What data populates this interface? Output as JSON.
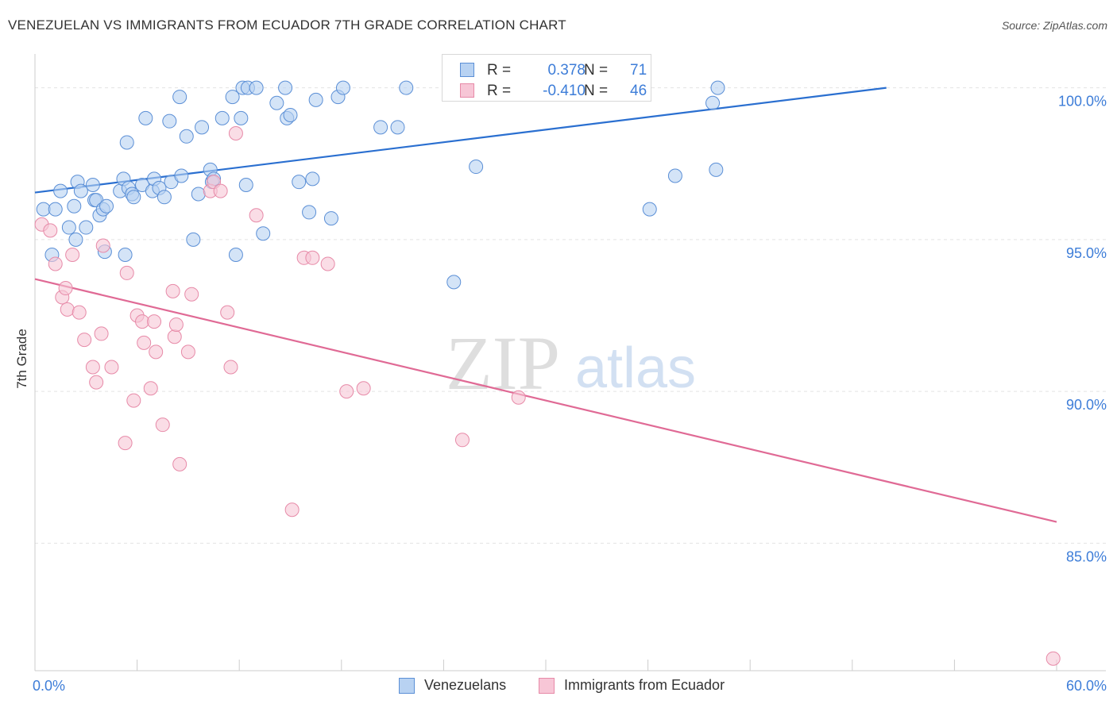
{
  "header": {
    "title": "VENEZUELAN VS IMMIGRANTS FROM ECUADOR 7TH GRADE CORRELATION CHART",
    "source": "Source: ZipAtlas.com"
  },
  "colors": {
    "blue_fill": "#b8d2f2",
    "blue_stroke": "#5b8fd6",
    "blue_line": "#2a6fd0",
    "pink_fill": "#f7c6d6",
    "pink_stroke": "#e78aa8",
    "pink_line": "#e06a95",
    "tick_label": "#3d7dd8"
  },
  "stats_legend": {
    "rows": [
      {
        "r_label": "R =",
        "r_value": "0.378",
        "n_label": "N =",
        "n_value": "71"
      },
      {
        "r_label": "R =",
        "r_value": "-0.410",
        "n_label": "N =",
        "n_value": "46"
      }
    ]
  },
  "watermark": {
    "zip": "ZIP",
    "atlas": "atlas"
  },
  "chart_data": {
    "type": "scatter",
    "title": "VENEZUELAN VS IMMIGRANTS FROM ECUADOR 7TH GRADE CORRELATION CHART",
    "xlabel": "",
    "ylabel": "7th Grade",
    "xlim": [
      0,
      60
    ],
    "ylim": [
      80.8,
      100.8
    ],
    "x_tick_labels": [
      {
        "value": 0,
        "label": "0.0%"
      },
      {
        "value": 60,
        "label": "60.0%"
      }
    ],
    "y_tick_labels": [
      {
        "value": 100,
        "label": "100.0%"
      },
      {
        "value": 95,
        "label": "95.0%"
      },
      {
        "value": 90,
        "label": "90.0%"
      },
      {
        "value": 85,
        "label": "85.0%"
      }
    ],
    "grid": true,
    "legend_position": "bottom",
    "series": [
      {
        "name": "Venezuelans",
        "trend": {
          "x": [
            0,
            50
          ],
          "y": [
            96.55,
            100.0
          ]
        },
        "x": [
          0.5,
          1.0,
          1.2,
          1.5,
          2.0,
          2.3,
          2.4,
          2.5,
          2.7,
          3.0,
          3.4,
          3.5,
          3.6,
          3.8,
          4.0,
          4.1,
          4.2,
          5.0,
          5.2,
          5.3,
          5.4,
          5.5,
          5.7,
          5.8,
          6.3,
          6.5,
          6.9,
          7.0,
          7.3,
          7.6,
          7.9,
          8.0,
          8.5,
          8.6,
          8.9,
          9.3,
          9.6,
          9.8,
          10.3,
          10.4,
          10.5,
          11.0,
          11.6,
          11.8,
          12.1,
          12.2,
          12.4,
          12.5,
          13.0,
          13.4,
          14.2,
          14.7,
          14.8,
          15.0,
          15.5,
          16.1,
          16.3,
          16.5,
          17.4,
          17.8,
          18.1,
          20.3,
          21.3,
          21.8,
          24.6,
          25.9,
          36.1,
          37.6,
          39.8,
          40.0,
          40.1
        ],
        "y": [
          96.0,
          94.5,
          96.0,
          96.6,
          95.4,
          96.1,
          95.0,
          96.9,
          96.6,
          95.4,
          96.8,
          96.3,
          96.3,
          95.8,
          96.0,
          94.6,
          96.1,
          96.6,
          97.0,
          94.5,
          98.2,
          96.7,
          96.5,
          96.4,
          96.8,
          99.0,
          96.6,
          97.0,
          96.7,
          96.4,
          98.9,
          96.9,
          99.7,
          97.1,
          98.4,
          95.0,
          96.5,
          98.7,
          97.3,
          96.9,
          97.0,
          99.0,
          99.7,
          94.5,
          99.0,
          100.0,
          96.8,
          100.0,
          100.0,
          95.2,
          99.5,
          100.0,
          99.0,
          99.1,
          96.9,
          95.9,
          97.0,
          99.6,
          95.7,
          99.7,
          100.0,
          98.7,
          98.7,
          100.0,
          93.6,
          97.4,
          96.0,
          97.1,
          99.5,
          97.3,
          100.0
        ]
      },
      {
        "name": "Immigrants from Ecuador",
        "trend": {
          "x": [
            0,
            60
          ],
          "y": [
            93.7,
            85.7
          ]
        },
        "x": [
          0.4,
          0.9,
          1.2,
          1.6,
          1.8,
          1.9,
          2.2,
          2.6,
          2.9,
          3.4,
          3.6,
          3.9,
          4.0,
          4.5,
          5.3,
          5.4,
          5.8,
          6.0,
          6.3,
          6.4,
          6.8,
          7.0,
          7.1,
          7.5,
          8.1,
          8.2,
          8.3,
          8.5,
          9.0,
          9.2,
          10.3,
          10.5,
          10.9,
          11.3,
          11.5,
          11.8,
          13.0,
          15.1,
          15.8,
          16.3,
          17.2,
          18.3,
          19.3,
          25.1,
          28.4,
          59.8
        ],
        "y": [
          95.5,
          95.3,
          94.2,
          93.1,
          93.4,
          92.7,
          94.5,
          92.6,
          91.7,
          90.8,
          90.3,
          91.9,
          94.8,
          90.8,
          88.3,
          93.9,
          89.7,
          92.5,
          92.3,
          91.6,
          90.1,
          92.3,
          91.3,
          88.9,
          93.3,
          91.8,
          92.2,
          87.6,
          91.3,
          93.2,
          96.6,
          96.9,
          96.6,
          92.6,
          90.8,
          98.5,
          95.8,
          86.1,
          94.4,
          94.4,
          94.2,
          90.0,
          90.1,
          88.4,
          89.8,
          81.2
        ]
      }
    ]
  }
}
